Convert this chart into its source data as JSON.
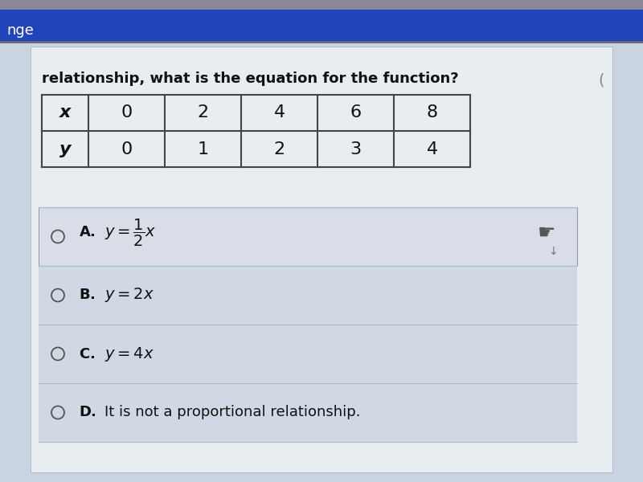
{
  "header_text": "relationship, what is the equation for the function?",
  "table_x_values": [
    "x",
    "0",
    "2",
    "4",
    "6",
    "8"
  ],
  "table_y_values": [
    "y",
    "0",
    "1",
    "2",
    "3",
    "4"
  ],
  "top_bar_color": "#2244bb",
  "top_label": "nge",
  "bg_color": "#c8d4e0",
  "page_bg": "#dde6ee",
  "white_bg": "#e8edf2",
  "table_border_color": "#444444",
  "answer_A_bg": "#d8dde8",
  "answer_bg": "#d0d8e4",
  "separator_color": "#aabbcc",
  "text_color": "#111111",
  "header_font_size": 13,
  "table_font_size": 16,
  "answer_font_size": 13
}
